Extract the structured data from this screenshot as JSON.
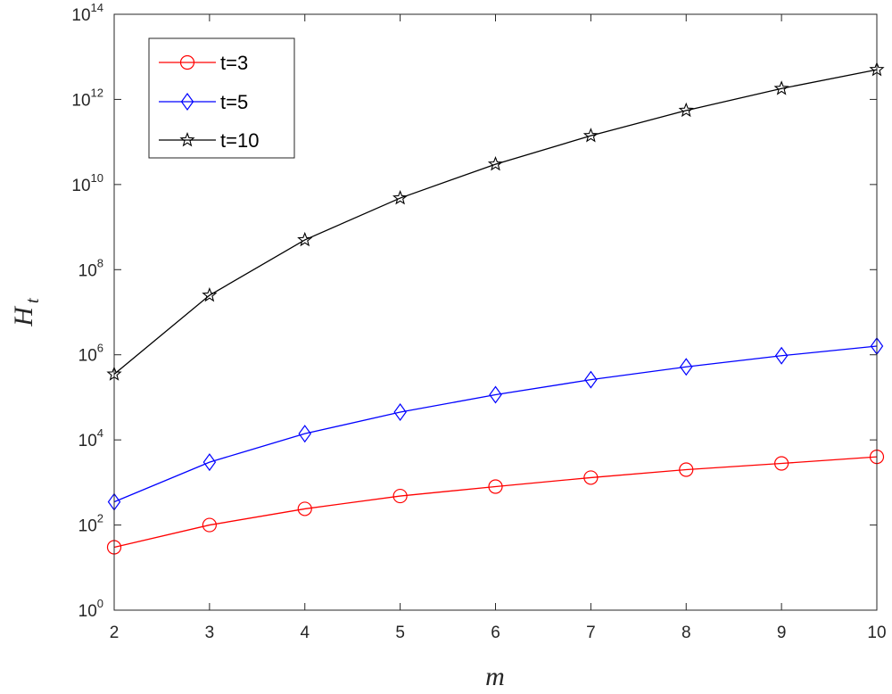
{
  "chart_data": {
    "type": "line",
    "title": "",
    "xlabel": "m",
    "ylabel": "H",
    "ylabel_subscript": "t",
    "x": [
      2,
      3,
      4,
      5,
      6,
      7,
      8,
      9,
      10
    ],
    "xlim": [
      2,
      10
    ],
    "xticks": [
      "2",
      "3",
      "4",
      "5",
      "6",
      "7",
      "8",
      "9",
      "10"
    ],
    "yscale": "log",
    "ylim": [
      1,
      100000000000000.0
    ],
    "yticks": [
      {
        "base": "10",
        "exp": "0"
      },
      {
        "base": "10",
        "exp": "2"
      },
      {
        "base": "10",
        "exp": "4"
      },
      {
        "base": "10",
        "exp": "6"
      },
      {
        "base": "10",
        "exp": "8"
      },
      {
        "base": "10",
        "exp": "10"
      },
      {
        "base": "10",
        "exp": "12"
      },
      {
        "base": "10",
        "exp": "14"
      }
    ],
    "ytick_exponents": [
      0,
      2,
      4,
      6,
      8,
      10,
      12,
      14
    ],
    "grid": false,
    "legend_position": "top-left",
    "series": [
      {
        "name": "t=3",
        "color": "#ff0000",
        "marker": "circle",
        "values": [
          30,
          100,
          240,
          480,
          800,
          1300,
          2000,
          2800,
          4000
        ]
      },
      {
        "name": "t=5",
        "color": "#0000ff",
        "marker": "diamond",
        "values": [
          350,
          3000,
          14000,
          45000,
          115000,
          260000,
          520000,
          950000,
          1600000
        ]
      },
      {
        "name": "t=10",
        "color": "#000000",
        "marker": "star",
        "values": [
          350000,
          25000000,
          500000000,
          4800000000,
          30000000000,
          140000000000,
          550000000000,
          1800000000000,
          5000000000000
        ]
      }
    ]
  }
}
